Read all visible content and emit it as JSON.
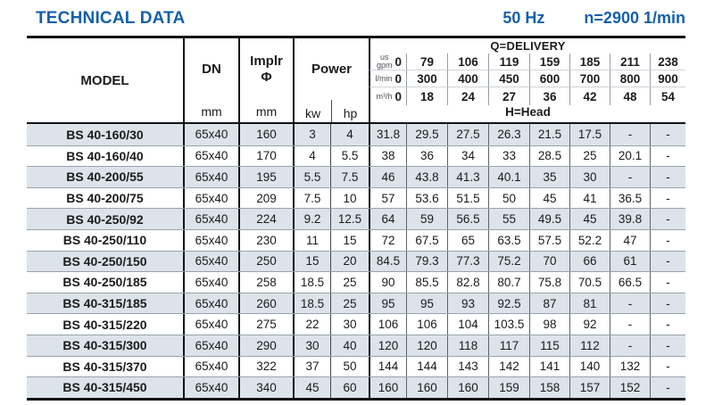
{
  "page": {
    "title": "TECHNICAL DATA",
    "frequency": "50 Hz",
    "speed": "n=2900 1/min"
  },
  "colors": {
    "accent": "#1560a8",
    "stripe": "#dce3ea"
  },
  "table": {
    "model_label": "MODEL",
    "dn_label": "DN",
    "dn_unit": "mm",
    "implr_label": "Implr",
    "implr_symbol": "Φ",
    "implr_unit": "mm",
    "power_label": "Power",
    "kw_label": "kw",
    "hp_label": "hp",
    "delivery_title": "Q=DELIVERY",
    "head_title": "H=Head",
    "flow_rows": [
      {
        "unit": "us\ngpm",
        "values": [
          "0",
          "79",
          "106",
          "119",
          "159",
          "185",
          "211",
          "238"
        ]
      },
      {
        "unit": "l/min",
        "values": [
          "0",
          "300",
          "400",
          "450",
          "600",
          "700",
          "800",
          "900"
        ]
      },
      {
        "unit": "m³/h",
        "values": [
          "0",
          "18",
          "24",
          "27",
          "36",
          "42",
          "48",
          "54"
        ]
      }
    ],
    "rows": [
      {
        "model": "BS 40-160/30",
        "dn": "65x40",
        "implr": "160",
        "kw": "3",
        "hp": "4",
        "heads": [
          "31.8",
          "29.5",
          "27.5",
          "26.3",
          "21.5",
          "17.5",
          "-",
          "-"
        ]
      },
      {
        "model": "BS 40-160/40",
        "dn": "65x40",
        "implr": "170",
        "kw": "4",
        "hp": "5.5",
        "heads": [
          "38",
          "36",
          "34",
          "33",
          "28.5",
          "25",
          "20.1",
          "-"
        ]
      },
      {
        "model": "BS 40-200/55",
        "dn": "65x40",
        "implr": "195",
        "kw": "5.5",
        "hp": "7.5",
        "heads": [
          "46",
          "43.8",
          "41.3",
          "40.1",
          "35",
          "30",
          "-",
          "-"
        ]
      },
      {
        "model": "BS 40-200/75",
        "dn": "65x40",
        "implr": "209",
        "kw": "7.5",
        "hp": "10",
        "heads": [
          "57",
          "53.6",
          "51.5",
          "50",
          "45",
          "41",
          "36.5",
          "-"
        ]
      },
      {
        "model": "BS 40-250/92",
        "dn": "65x40",
        "implr": "224",
        "kw": "9.2",
        "hp": "12.5",
        "heads": [
          "64",
          "59",
          "56.5",
          "55",
          "49.5",
          "45",
          "39.8",
          "-"
        ]
      },
      {
        "model": "BS 40-250/110",
        "dn": "65x40",
        "implr": "230",
        "kw": "11",
        "hp": "15",
        "heads": [
          "72",
          "67.5",
          "65",
          "63.5",
          "57.5",
          "52.2",
          "47",
          "-"
        ]
      },
      {
        "model": "BS 40-250/150",
        "dn": "65x40",
        "implr": "250",
        "kw": "15",
        "hp": "20",
        "heads": [
          "84.5",
          "79.3",
          "77.3",
          "75.2",
          "70",
          "66",
          "61",
          "-"
        ]
      },
      {
        "model": "BS 40-250/185",
        "dn": "65x40",
        "implr": "258",
        "kw": "18.5",
        "hp": "25",
        "heads": [
          "90",
          "85.5",
          "82.8",
          "80.7",
          "75.8",
          "70.5",
          "66.5",
          "-"
        ]
      },
      {
        "model": "BS 40-315/185",
        "dn": "65x40",
        "implr": "260",
        "kw": "18.5",
        "hp": "25",
        "heads": [
          "95",
          "95",
          "93",
          "92.5",
          "87",
          "81",
          "-",
          "-"
        ]
      },
      {
        "model": "BS 40-315/220",
        "dn": "65x40",
        "implr": "275",
        "kw": "22",
        "hp": "30",
        "heads": [
          "106",
          "106",
          "104",
          "103.5",
          "98",
          "92",
          "-",
          "-"
        ]
      },
      {
        "model": "BS 40-315/300",
        "dn": "65x40",
        "implr": "290",
        "kw": "30",
        "hp": "40",
        "heads": [
          "120",
          "120",
          "118",
          "117",
          "115",
          "112",
          "-",
          "-"
        ]
      },
      {
        "model": "BS 40-315/370",
        "dn": "65x40",
        "implr": "322",
        "kw": "37",
        "hp": "50",
        "heads": [
          "144",
          "144",
          "143",
          "142",
          "141",
          "140",
          "132",
          "-"
        ]
      },
      {
        "model": "BS 40-315/450",
        "dn": "65x40",
        "implr": "340",
        "kw": "45",
        "hp": "60",
        "heads": [
          "160",
          "160",
          "160",
          "159",
          "158",
          "157",
          "152",
          "-"
        ]
      }
    ]
  }
}
